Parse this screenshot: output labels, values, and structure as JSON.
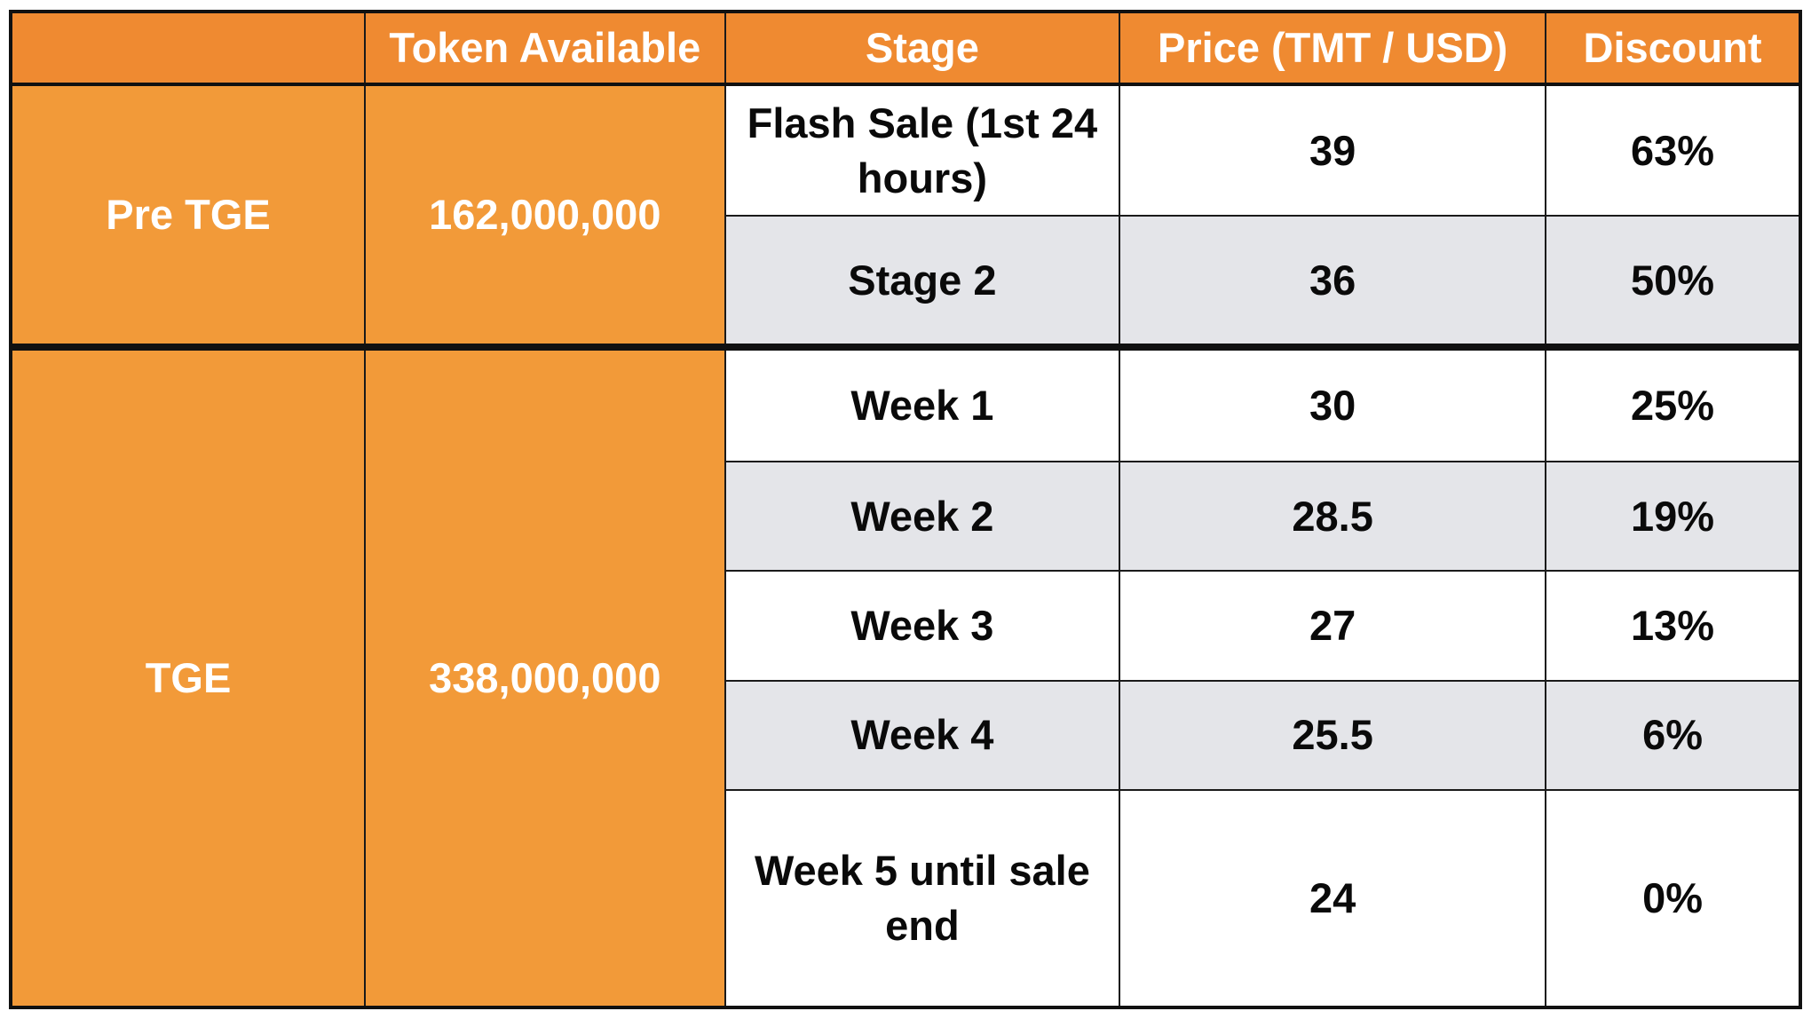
{
  "headers": [
    "",
    "Token Available",
    "Stage",
    "Price (TMT / USD)",
    "Discount"
  ],
  "groups": [
    {
      "name": "Pre TGE",
      "tokens": "162,000,000",
      "rows": [
        {
          "stage": "Flash Sale (1st 24 hours)",
          "price": "39",
          "discount": "63%"
        },
        {
          "stage": "Stage 2",
          "price": "36",
          "discount": "50%"
        }
      ]
    },
    {
      "name": "TGE",
      "tokens": "338,000,000",
      "rows": [
        {
          "stage": "Week 1",
          "price": "30",
          "discount": "25%"
        },
        {
          "stage": "Week 2",
          "price": "28.5",
          "discount": "19%"
        },
        {
          "stage": "Week 3",
          "price": "27",
          "discount": "13%"
        },
        {
          "stage": "Week 4",
          "price": "25.5",
          "discount": "6%"
        },
        {
          "stage": "Week 5 until sale end",
          "price": "24",
          "discount": "0%"
        }
      ]
    }
  ],
  "colors": {
    "header_orange": "#ef8a31",
    "group_orange": "#f29a39",
    "row_grey": "#e4e5e9",
    "row_white": "#ffffff",
    "border": "#111111"
  }
}
